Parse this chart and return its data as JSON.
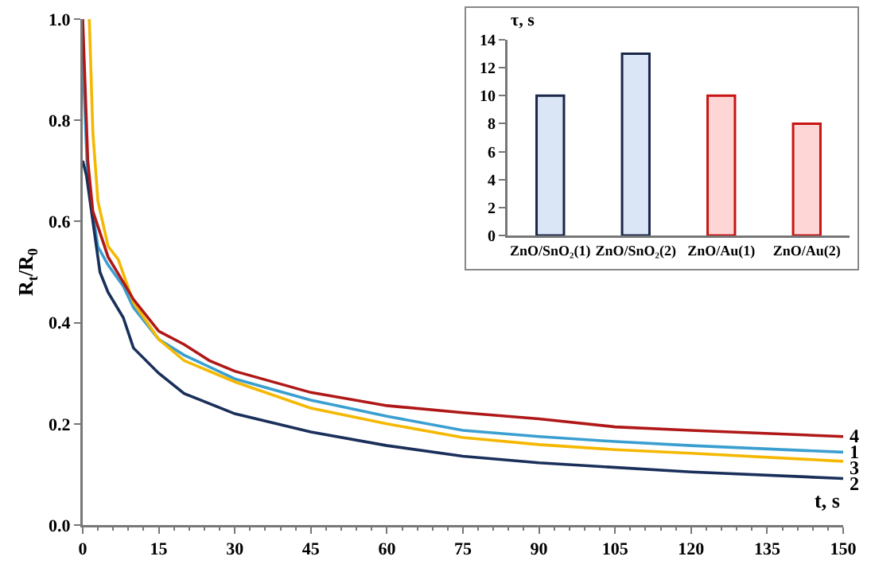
{
  "chart_data": [
    {
      "type": "line",
      "xlabel": "t, s",
      "ylabel": "R$_{t}$/R$_{0}$",
      "xlim": [
        0,
        150
      ],
      "xticks": [
        0,
        15,
        30,
        45,
        60,
        75,
        90,
        105,
        120,
        135,
        150
      ],
      "ylim": [
        0,
        1
      ],
      "yticks": [
        {
          "value": 0,
          "label": "0.0"
        },
        {
          "value": 0.2,
          "label": "0.2"
        },
        {
          "value": 0.4,
          "label": "0.4"
        },
        {
          "value": 0.6,
          "label": "0.6"
        },
        {
          "value": 0.8,
          "label": "0.8"
        },
        {
          "value": 1,
          "label": "1.0"
        }
      ],
      "grid": false,
      "marker": "none",
      "line_style": "solid",
      "series": [
        {
          "name": "1",
          "color": "#3a9fd0",
          "x": [
            0,
            1,
            3,
            5,
            8,
            10,
            15,
            20,
            30,
            45,
            60,
            75,
            90,
            105,
            120,
            150
          ],
          "values": [
            0.92,
            0.68,
            0.55,
            0.514,
            0.472,
            0.43,
            0.367,
            0.336,
            0.289,
            0.247,
            0.215,
            0.187,
            0.175,
            0.165,
            0.157,
            0.144
          ]
        },
        {
          "name": "2",
          "color": "#1a2f5a",
          "x": [
            0,
            0.75,
            3.4,
            5,
            8,
            10,
            15,
            20,
            30,
            45,
            60,
            75,
            90,
            120,
            150
          ],
          "values": [
            0.72,
            0.69,
            0.5,
            0.46,
            0.41,
            0.35,
            0.3,
            0.26,
            0.22,
            0.184,
            0.157,
            0.136,
            0.123,
            0.105,
            0.092
          ]
        },
        {
          "name": "3",
          "color": "#f5b800",
          "x": [
            1.3,
            2,
            3,
            5,
            7,
            10,
            15,
            20,
            30,
            45,
            60,
            75,
            90,
            105,
            120,
            150
          ],
          "values": [
            1,
            0.776,
            0.64,
            0.551,
            0.525,
            0.44,
            0.367,
            0.325,
            0.283,
            0.231,
            0.2,
            0.173,
            0.159,
            0.149,
            0.142,
            0.126
          ]
        },
        {
          "name": "4",
          "color": "#b01818",
          "x": [
            0,
            1,
            2,
            5,
            8,
            10,
            15,
            20,
            25,
            30,
            45,
            60,
            75,
            90,
            105,
            120,
            150
          ],
          "values": [
            1,
            0.72,
            0.62,
            0.53,
            0.48,
            0.446,
            0.383,
            0.357,
            0.325,
            0.304,
            0.262,
            0.236,
            0.222,
            0.21,
            0.194,
            0.187,
            0.175
          ]
        }
      ]
    },
    {
      "type": "bar",
      "ylabel": "τ, s",
      "categories": [
        "ZnO/SnO₂(1)",
        "ZnO/SnO₂(2)",
        "ZnO/Au(1)",
        "ZnO/Au(2)"
      ],
      "values": [
        10,
        13,
        10,
        8
      ],
      "colors": [
        "#dae6f5",
        "#dae6f5",
        "#ffd6d6",
        "#ffd6d6"
      ],
      "ylim": [
        0,
        14
      ],
      "yticks": [
        0,
        2,
        4,
        6,
        8,
        10,
        12,
        14
      ],
      "grid": false
    }
  ]
}
